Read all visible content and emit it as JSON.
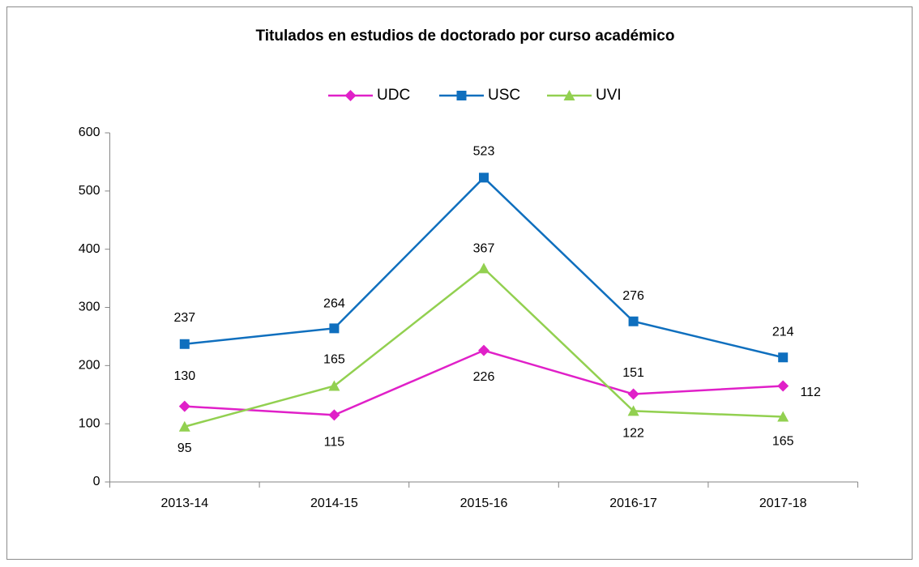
{
  "chart_data": {
    "type": "line",
    "title": "Titulados en estudios de doctorado por curso académico",
    "categories": [
      "2013-14",
      "2014-15",
      "2015-16",
      "2016-17",
      "2017-18"
    ],
    "series": [
      {
        "name": "UDC",
        "color": "#e020c8",
        "marker": "diamond",
        "values": [
          130,
          115,
          226,
          151,
          165
        ]
      },
      {
        "name": "USC",
        "color": "#0f6fbe",
        "marker": "square",
        "values": [
          237,
          264,
          523,
          276,
          214
        ]
      },
      {
        "name": "UVI",
        "color": "#92d050",
        "marker": "triangle",
        "values": [
          95,
          165,
          367,
          122,
          112
        ]
      }
    ],
    "ylim": [
      0,
      600
    ],
    "yticks": [
      0,
      100,
      200,
      300,
      400,
      500,
      600
    ],
    "grid": false,
    "legend": "top"
  }
}
